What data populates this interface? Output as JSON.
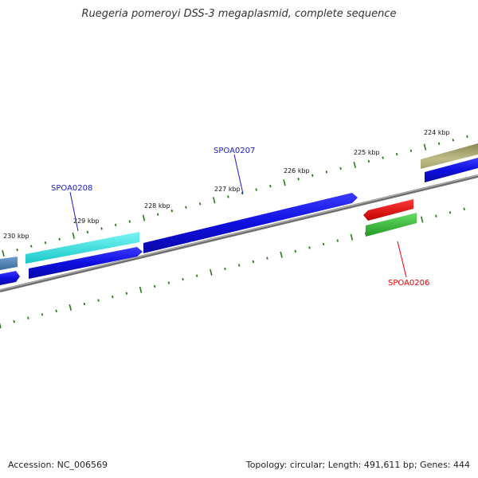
{
  "title": "Ruegeria pomeroyi DSS-3 megaplasmid, complete sequence",
  "footer": {
    "accession": "Accession: NC_006569",
    "topology": "Topology: circular; Length: 491,611 bp; Genes: 444"
  },
  "scale_labels": [
    "224 kbp",
    "225 kbp",
    "226 kbp",
    "227 kbp",
    "228 kbp",
    "229 kbp",
    "230 kbp"
  ],
  "gene_labels": [
    {
      "text": "SPOA0208",
      "color": "#1a1acc"
    },
    {
      "text": "SPOA0207",
      "color": "#1a1acc"
    },
    {
      "text": "SPOA0206",
      "color": "#e60000"
    }
  ],
  "colors": {
    "backbone": "#8a8a8a",
    "tick": "#2a7a1a",
    "cds_blue": "#1010e0",
    "cyan": "#33e6e6",
    "olive": "#aaa66a",
    "red": "#ee1111",
    "green": "#33bb33",
    "steel": "#4f7fb0"
  }
}
